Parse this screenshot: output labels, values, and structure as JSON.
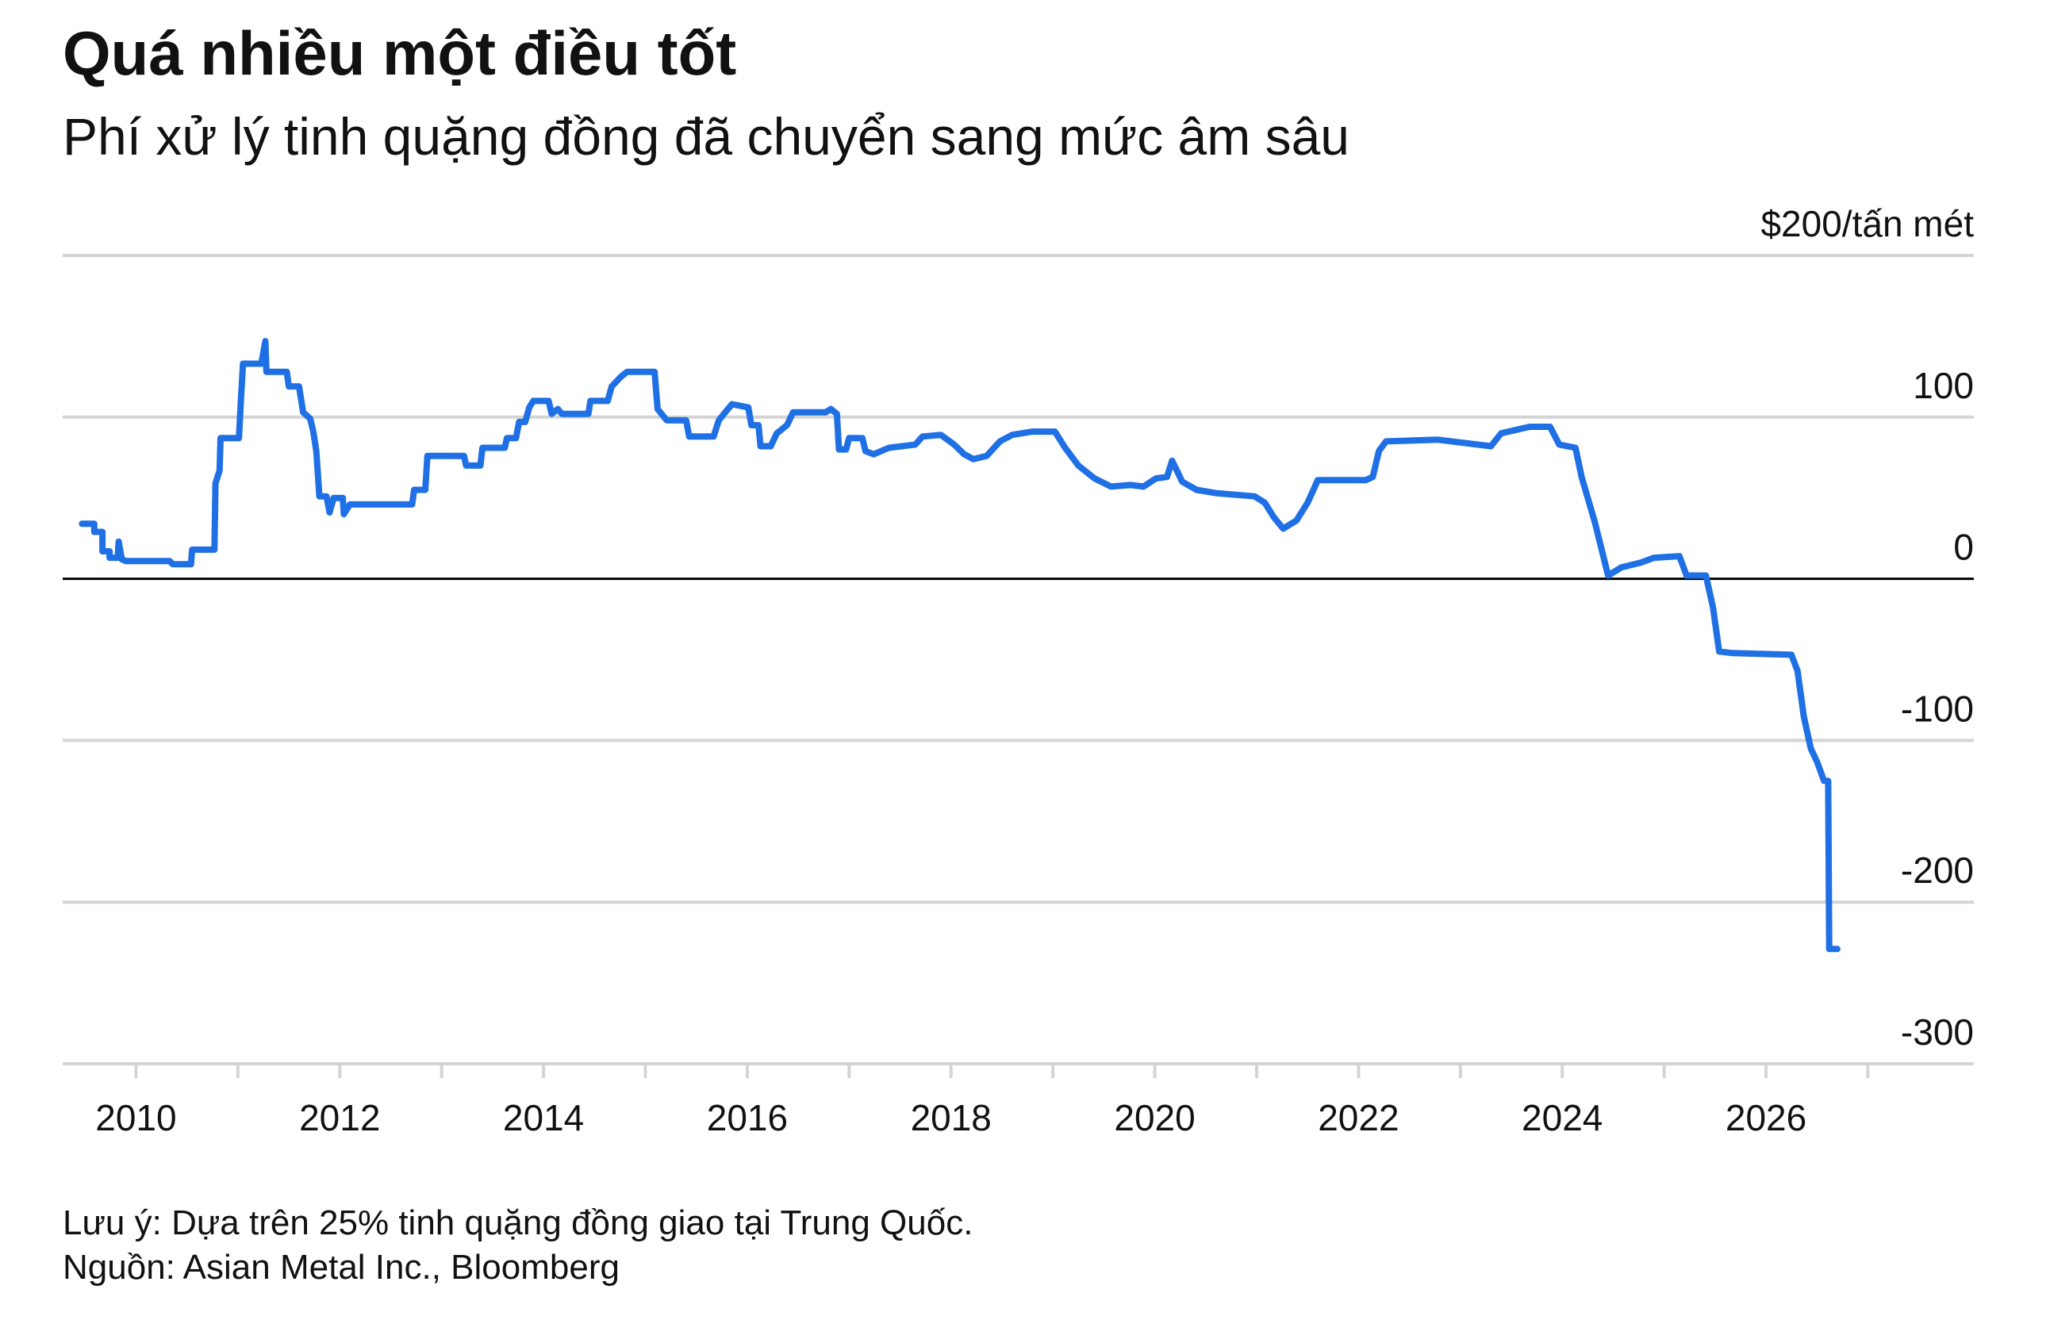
{
  "chart_data": {
    "type": "line",
    "title": "Quá nhiều một điều tốt",
    "subtitle": "Phí xử lý tinh quặng đồng đã chuyển sang mức âm sâu",
    "note": "Lưu ý: Dựa trên 25% tinh quặng đồng giao tại Trung Quốc.",
    "source": "Nguồn: Asian Metal Inc., Bloomberg",
    "xlim": [
      2009.28,
      2028.04
    ],
    "xticks": [
      2010,
      2012,
      2014,
      2016,
      2018,
      2020,
      2022,
      2024,
      2026
    ],
    "xminorticks": [
      2011,
      2013,
      2015,
      2017,
      2019,
      2021,
      2023,
      2025,
      2027
    ],
    "ylim": [
      -300,
      200
    ],
    "yticks": [
      -300,
      -200,
      -100,
      0,
      100,
      {
        "value": 200,
        "label": "$200/tấn mét"
      }
    ],
    "grid": true,
    "x": [
      2009.47,
      2009.59,
      2009.59,
      2009.67,
      2009.67,
      2009.74,
      2009.74,
      2009.82,
      2009.83,
      2009.86,
      2009.9,
      2010.33,
      2010.36,
      2010.54,
      2010.55,
      2010.77,
      2010.78,
      2010.82,
      2010.83,
      2011.01,
      2011.03,
      2011.05,
      2011.23,
      2011.27,
      2011.28,
      2011.48,
      2011.5,
      2011.6,
      2011.64,
      2011.71,
      2011.74,
      2011.77,
      2011.8,
      2011.87,
      2011.9,
      2011.94,
      2012.03,
      2012.04,
      2012.1,
      2012.71,
      2012.73,
      2012.84,
      2012.86,
      2013.22,
      2013.24,
      2013.38,
      2013.4,
      2013.62,
      2013.64,
      2013.73,
      2013.76,
      2013.82,
      2013.86,
      2013.9,
      2014.05,
      2014.08,
      2014.14,
      2014.18,
      2014.44,
      2014.46,
      2014.63,
      2014.67,
      2014.76,
      2014.82,
      2015.09,
      2015.12,
      2015.21,
      2015.4,
      2015.43,
      2015.67,
      2015.72,
      2015.81,
      2015.85,
      2016.01,
      2016.04,
      2016.11,
      2016.13,
      2016.23,
      2016.29,
      2016.39,
      2016.45,
      2016.77,
      2016.82,
      2016.88,
      2016.9,
      2016.97,
      2017.0,
      2017.13,
      2017.16,
      2017.24,
      2017.39,
      2017.65,
      2017.72,
      2017.9,
      2018.03,
      2018.13,
      2018.22,
      2018.35,
      2018.48,
      2018.6,
      2018.8,
      2019.02,
      2019.12,
      2019.25,
      2019.41,
      2019.57,
      2019.76,
      2019.89,
      2020.01,
      2020.12,
      2020.17,
      2020.27,
      2020.41,
      2020.6,
      2020.98,
      2021.08,
      2021.17,
      2021.26,
      2021.39,
      2021.5,
      2021.6,
      2022.07,
      2022.14,
      2022.2,
      2022.27,
      2022.78,
      2023.3,
      2023.4,
      2023.68,
      2023.88,
      2023.97,
      2024.13,
      2024.19,
      2024.32,
      2024.45,
      2024.58,
      2024.77,
      2024.9,
      2025.15,
      2025.22,
      2025.41,
      2025.48,
      2025.54,
      2025.67,
      2026.25,
      2026.31,
      2026.37,
      2026.44,
      2026.5,
      2026.57,
      2026.61,
      2026.62,
      2026.7
    ],
    "series": [
      {
        "color": "#1f6fe5",
        "values": [
          34,
          34,
          29,
          29,
          17,
          17,
          13,
          13,
          23,
          12,
          11,
          11,
          9,
          9,
          18,
          18,
          59,
          67,
          87,
          87,
          111,
          133,
          133,
          147,
          128,
          128,
          119,
          119,
          103,
          99,
          91,
          79,
          51,
          51,
          41,
          50,
          50,
          40,
          46,
          46,
          55,
          55,
          76,
          76,
          70,
          70,
          81,
          81,
          87,
          87,
          97,
          97,
          106,
          110,
          110,
          102,
          105,
          102,
          102,
          110,
          110,
          119,
          125,
          128,
          128,
          105,
          98,
          98,
          88,
          88,
          98,
          105,
          108,
          106,
          95,
          95,
          82,
          82,
          90,
          95,
          103,
          103,
          105,
          102,
          80,
          80,
          87,
          87,
          79,
          77,
          81,
          83,
          88,
          89,
          83,
          77,
          74,
          76,
          85,
          89,
          91,
          91,
          81,
          70,
          62,
          57,
          58,
          57,
          62,
          63,
          73,
          60,
          55,
          53,
          51,
          47,
          38,
          31,
          36,
          47,
          61,
          61,
          63,
          79,
          85,
          86,
          82,
          90,
          94,
          94,
          83,
          81,
          63,
          35,
          2,
          7,
          10,
          13,
          14,
          2,
          2,
          -18,
          -45,
          -46,
          -47,
          -57,
          -85,
          -105,
          -113,
          -125,
          -125,
          -229,
          -229
        ]
      }
    ]
  }
}
